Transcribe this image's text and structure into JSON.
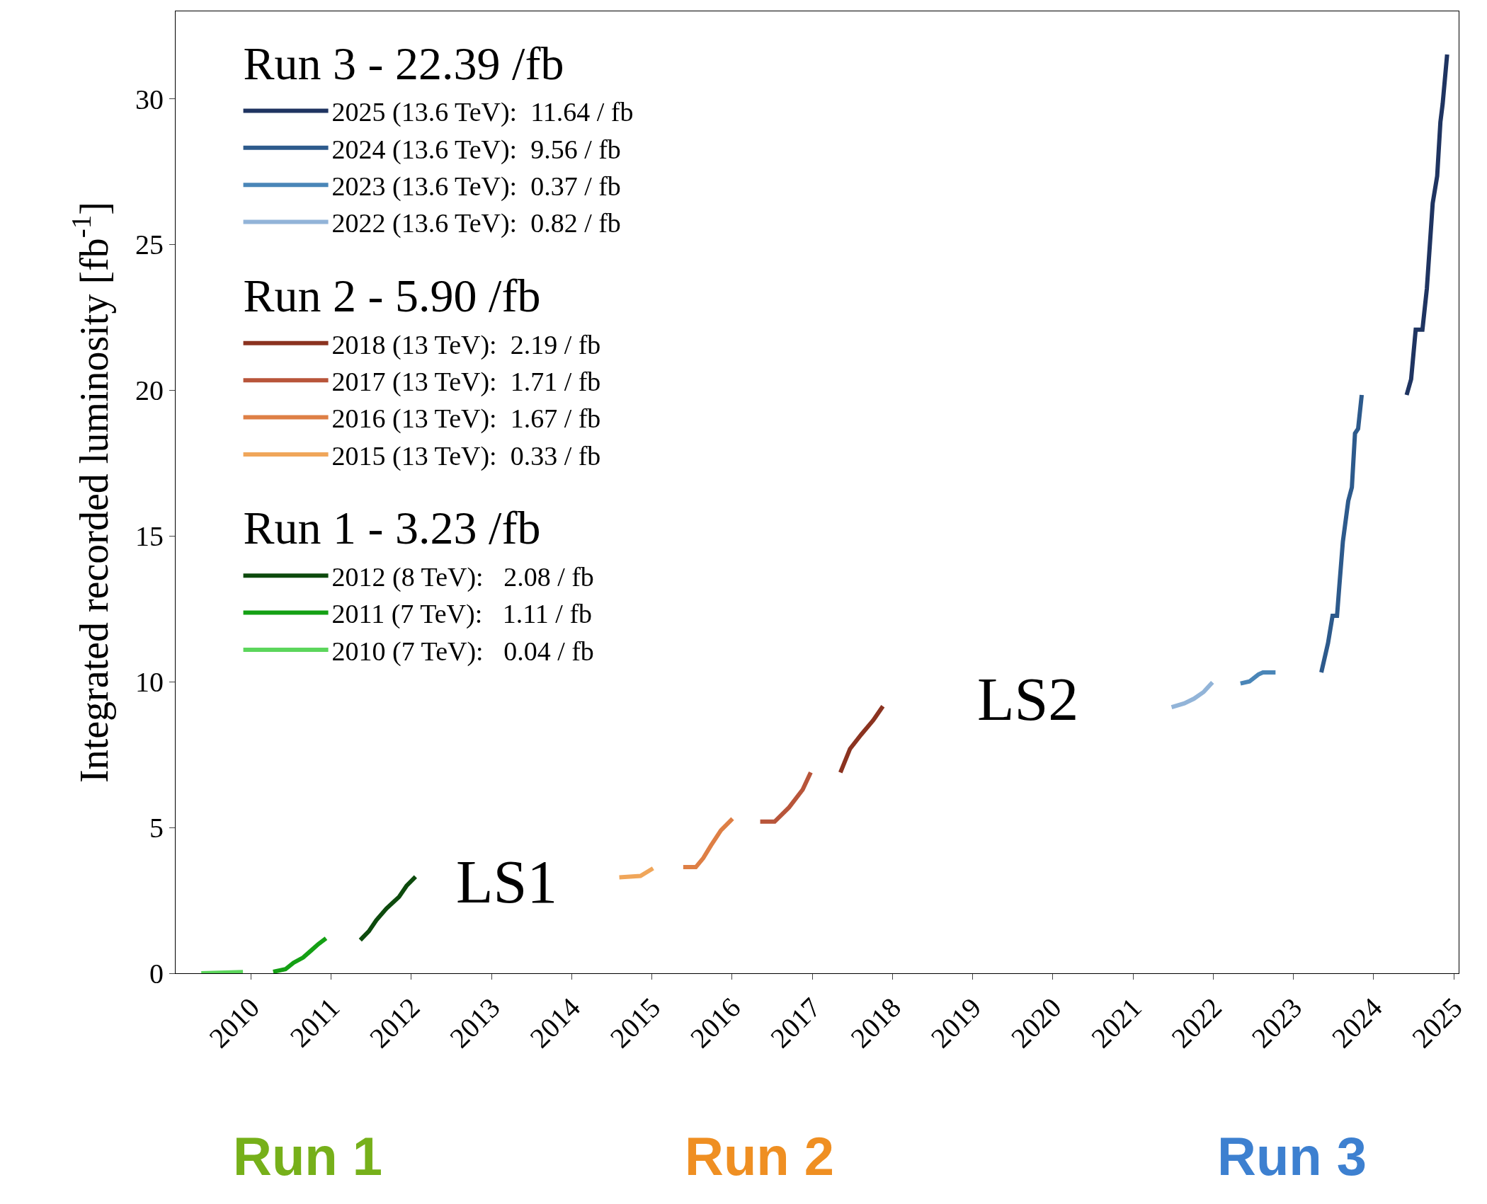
{
  "chart_data": {
    "type": "line",
    "ylabel": "Integrated recorded luminosity [fb$^{-1}$]",
    "xlim": [
      2009.06,
      2025.06
    ],
    "xticks": [
      2010,
      2011,
      2012,
      2013,
      2014,
      2015,
      2016,
      2017,
      2018,
      2019,
      2020,
      2021,
      2022,
      2023,
      2024,
      2025
    ],
    "ylim": [
      0,
      33
    ],
    "yticks": [
      0,
      5,
      10,
      15,
      20,
      25,
      30
    ],
    "legend": "top left",
    "marker": "none",
    "line_style": "solid",
    "legend_title": [
      "Run 3 - 22.39 /fb",
      "Run 2 - 5.90 /fb",
      "Run 1 - 3.23 /fb"
    ],
    "series": [
      {
        "name": "2025 (13.6 TeV):  11.64 / fb",
        "color": "#1f3461",
        "x": [
          2024.411,
          2024.467,
          2024.524,
          2024.608,
          2024.663,
          2024.736,
          2024.792,
          2024.832,
          2024.86,
          2024.916
        ],
        "values": [
          19.84,
          20.38,
          22.08,
          22.08,
          23.48,
          26.42,
          27.35,
          29.2,
          29.82,
          31.52
        ]
      },
      {
        "name": "2024 (13.6 TeV):  9.56 / fb",
        "color": "#2d5a8c",
        "x": [
          2023.347,
          2023.431,
          2023.487,
          2023.543,
          2023.571,
          2023.616,
          2023.683,
          2023.728,
          2023.767,
          2023.806,
          2023.851
        ],
        "values": [
          10.32,
          11.33,
          12.26,
          12.26,
          13.26,
          14.81,
          16.2,
          16.67,
          18.52,
          18.68,
          19.84
        ]
      },
      {
        "name": "2023 (13.6 TeV):  0.37 / fb",
        "color": "#4a86b8",
        "x": [
          2022.339,
          2022.451,
          2022.563,
          2022.619,
          2022.776
        ],
        "values": [
          9.94,
          10.01,
          10.25,
          10.32,
          10.32
        ]
      },
      {
        "name": "2022 (13.6 TeV):  0.82 / fb",
        "color": "#92b4d8",
        "x": [
          2021.48,
          2021.64,
          2021.76,
          2021.88,
          2021.99
        ],
        "values": [
          9.13,
          9.26,
          9.42,
          9.65,
          9.98
        ]
      },
      {
        "name": "2018 (13 TeV):  2.19 / fb",
        "color": "#8b3320",
        "x": [
          2017.35,
          2017.47,
          2017.61,
          2017.76,
          2017.88
        ],
        "values": [
          6.89,
          7.7,
          8.19,
          8.68,
          9.16
        ]
      },
      {
        "name": "2017 (13 TeV):  1.71 / fb",
        "color": "#b8553a",
        "x": [
          2016.35,
          2016.53,
          2016.71,
          2016.88,
          2016.98
        ],
        "values": [
          5.2,
          5.2,
          5.69,
          6.3,
          6.89
        ]
      },
      {
        "name": "2016 (13 TeV):  1.67 / fb",
        "color": "#de7f45",
        "x": [
          2015.39,
          2015.547,
          2015.64,
          2015.735,
          2015.86,
          2016.005
        ],
        "values": [
          3.64,
          3.64,
          3.95,
          4.38,
          4.9,
          5.3
        ]
      },
      {
        "name": "2015 (13 TeV):  0.33 / fb",
        "color": "#f0a65a",
        "x": [
          2014.593,
          2014.857,
          2015.014
        ],
        "values": [
          3.29,
          3.34,
          3.6
        ]
      },
      {
        "name": "2012 (8 TeV):   2.08 / fb",
        "color": "#0d4a0d",
        "x": [
          2011.363,
          2011.47,
          2011.563,
          2011.689,
          2011.846,
          2011.94,
          2012.052
        ],
        "values": [
          1.14,
          1.44,
          1.82,
          2.22,
          2.62,
          3.0,
          3.31
        ]
      },
      {
        "name": "2011 (7 TeV):   1.11 / fb",
        "color": "#14a014",
        "x": [
          2010.277,
          2010.43,
          2010.53,
          2010.65,
          2010.75,
          2010.84,
          2010.936
        ],
        "values": [
          0.05,
          0.14,
          0.36,
          0.54,
          0.78,
          1.0,
          1.2
        ]
      },
      {
        "name": "2010 (7 TeV):   0.04 / fb",
        "color": "#5cd65c",
        "x": [
          2009.38,
          2009.9
        ],
        "values": [
          0,
          0.04
        ]
      }
    ],
    "annotations": [
      "LS1",
      "LS2",
      "Run 1",
      "Run 2",
      "Run 3"
    ]
  }
}
